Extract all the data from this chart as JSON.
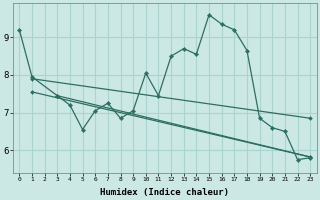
{
  "xlabel": "Humidex (Indice chaleur)",
  "bg_color": "#cce8e4",
  "grid_color": "#aad4d0",
  "line_color": "#2d6e62",
  "xlim": [
    -0.5,
    23.5
  ],
  "ylim": [
    5.4,
    9.9
  ],
  "xticks": [
    0,
    1,
    2,
    3,
    4,
    5,
    6,
    7,
    8,
    9,
    10,
    11,
    12,
    13,
    14,
    15,
    16,
    17,
    18,
    19,
    20,
    21,
    22,
    23
  ],
  "yticks": [
    6,
    7,
    8,
    9
  ],
  "main_series": [
    [
      0,
      9.2
    ],
    [
      1,
      7.95
    ],
    [
      3,
      7.45
    ],
    [
      4,
      7.2
    ],
    [
      5,
      6.55
    ],
    [
      6,
      7.05
    ],
    [
      7,
      7.25
    ],
    [
      8,
      6.85
    ],
    [
      9,
      7.05
    ],
    [
      10,
      8.05
    ],
    [
      11,
      7.45
    ],
    [
      12,
      8.5
    ],
    [
      13,
      8.7
    ],
    [
      14,
      8.55
    ],
    [
      15,
      9.6
    ],
    [
      16,
      9.35
    ],
    [
      17,
      9.2
    ],
    [
      18,
      8.65
    ],
    [
      19,
      6.85
    ],
    [
      20,
      6.6
    ],
    [
      21,
      6.5
    ],
    [
      22,
      5.75
    ],
    [
      23,
      5.8
    ]
  ],
  "trend_lines": [
    {
      "x0": 1,
      "y0": 7.9,
      "x1": 23,
      "y1": 6.85
    },
    {
      "x0": 1,
      "y0": 7.55,
      "x1": 23,
      "y1": 5.82
    },
    {
      "x0": 3,
      "y0": 7.45,
      "x1": 23,
      "y1": 5.82
    }
  ]
}
